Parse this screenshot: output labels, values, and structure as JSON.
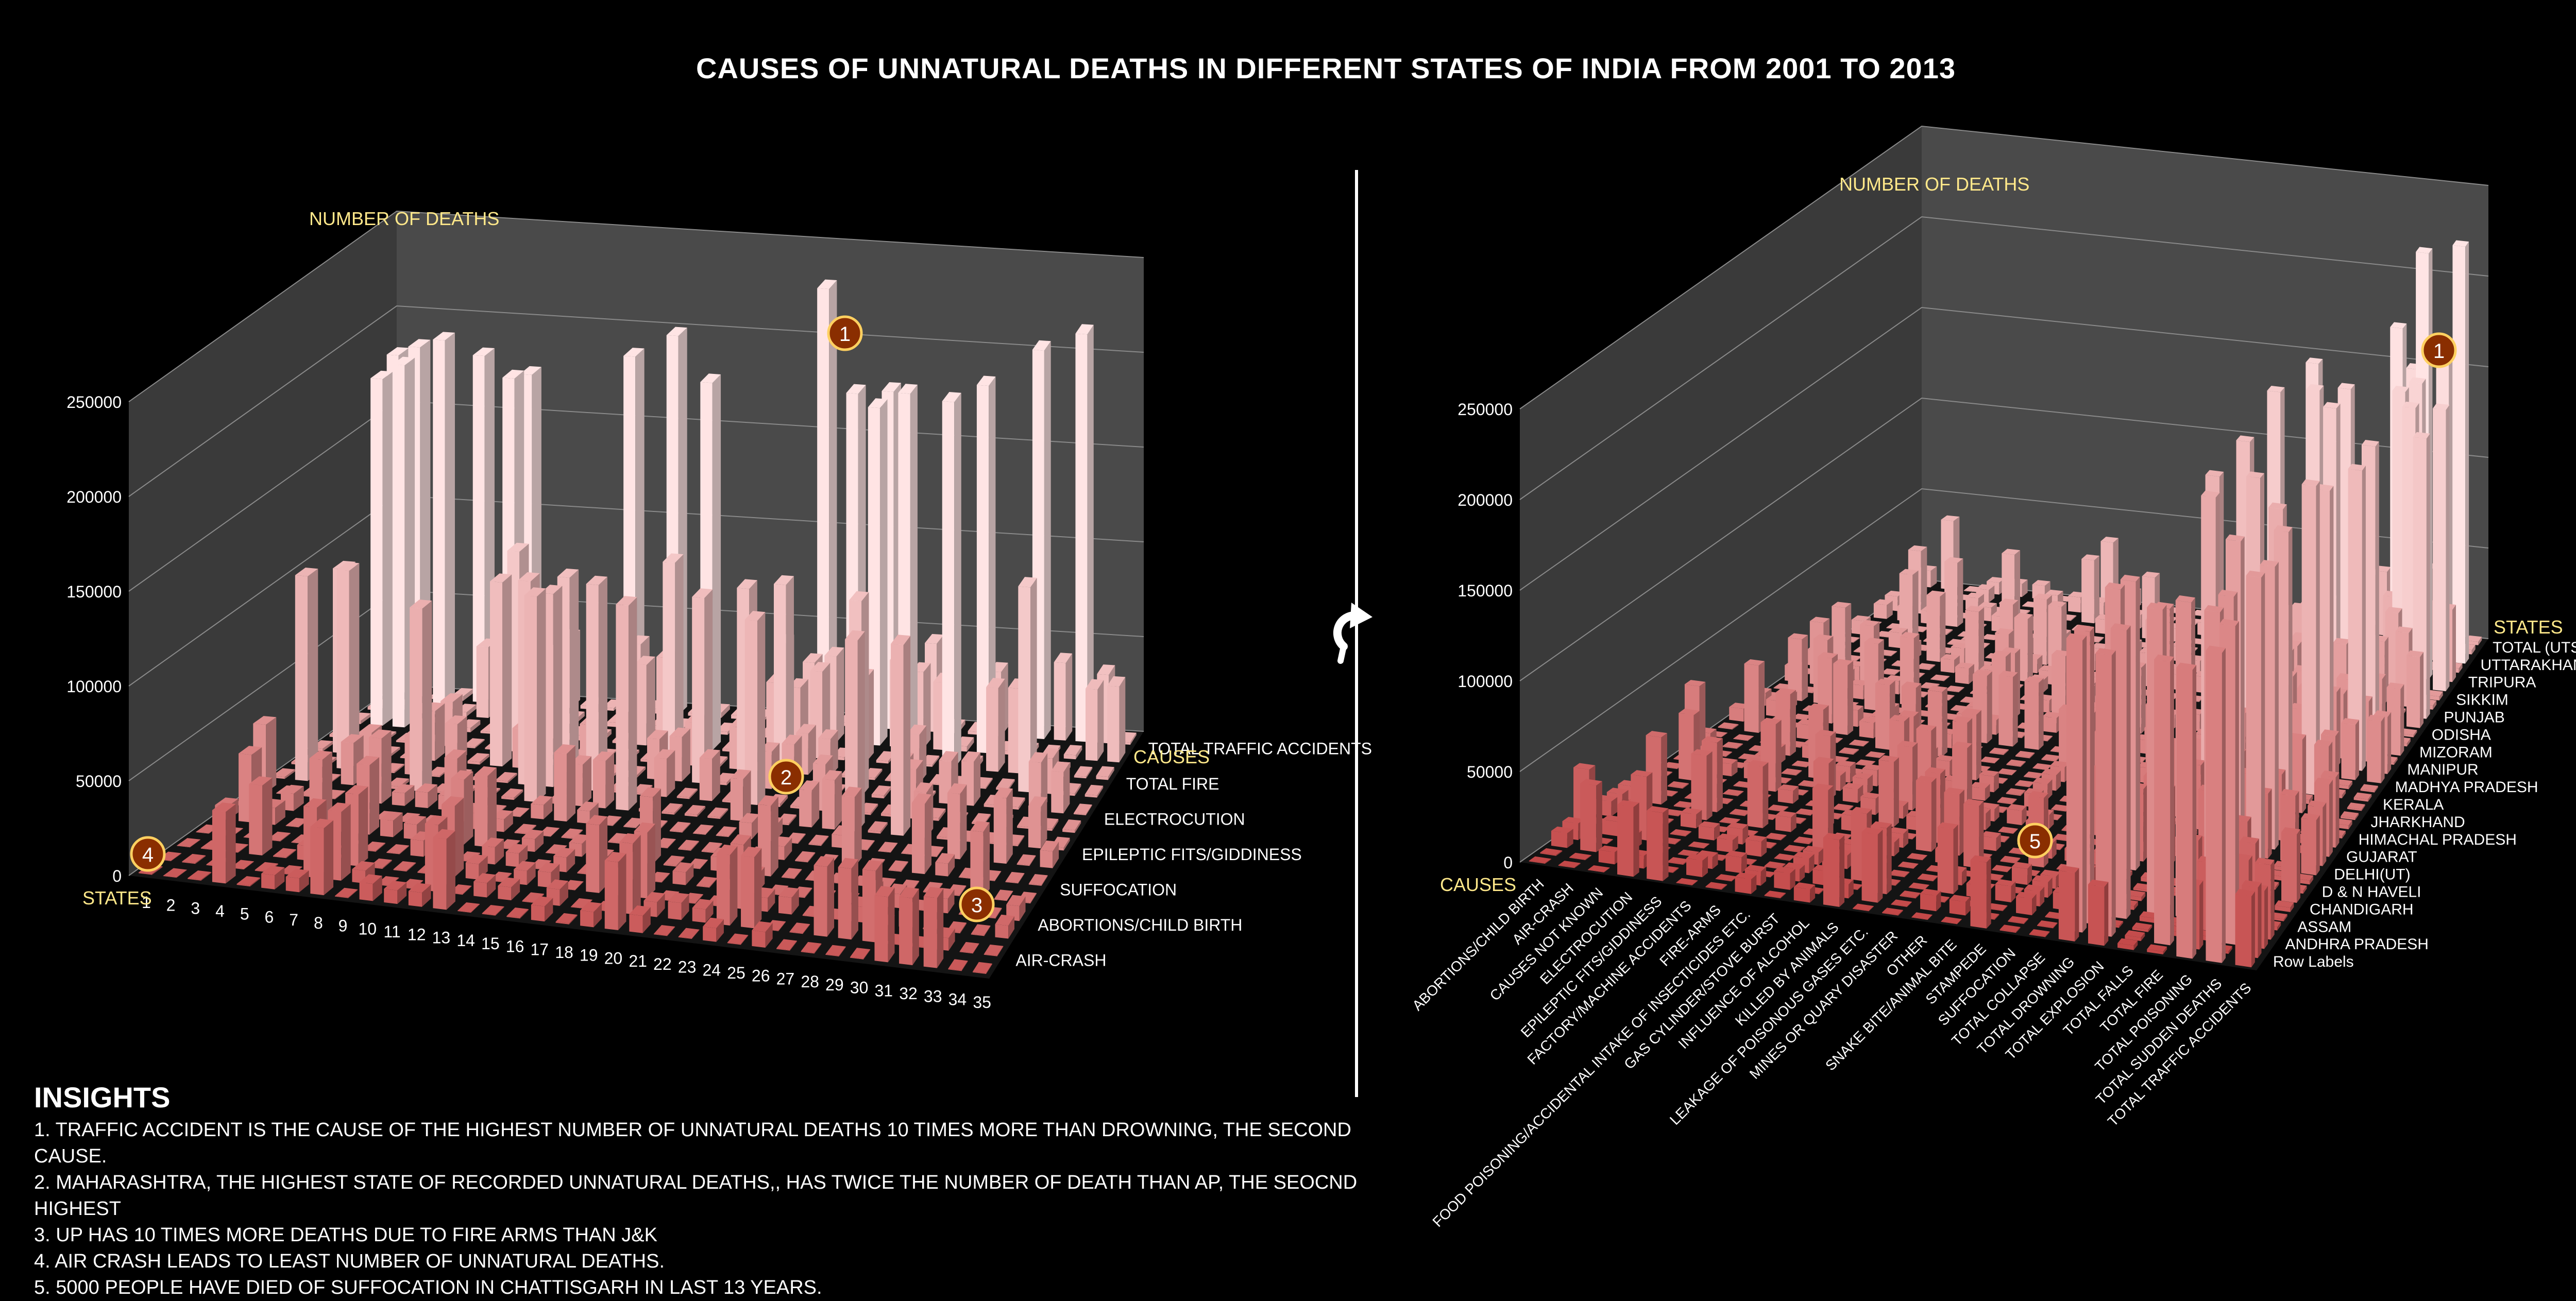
{
  "title": "CAUSES OF UNNATURAL DEATHS IN DIFFERENT STATES OF INDIA FROM 2001 TO 2013",
  "insights": {
    "heading": "INSIGHTS",
    "items": [
      "1. TRAFFIC ACCIDENT IS THE CAUSE OF THE HIGHEST NUMBER OF UNNATURAL DEATHS 10 TIMES MORE THAN DROWNING, THE SECOND CAUSE.",
      "2. MAHARASHTRA, THE HIGHEST STATE OF RECORDED UNNATURAL DEATHS,, HAS TWICE THE NUMBER OF DEATH THAN AP, THE SEOCND HIGHEST",
      "3. UP HAS 10 TIMES MORE DEATHS DUE TO FIRE ARMS THAN J&K",
      "4. AIR CRASH LEADS TO LEAST NUMBER OF UNNATURAL DEATHS.",
      "5. 5000 PEOPLE HAVE DIED OF SUFFOCATION IN CHATTISGARH IN LAST 13 YEARS."
    ]
  },
  "icons": {
    "rotate": "rotate-arrow-icon"
  },
  "colors": {
    "low": "#c04040",
    "high": "#ffe4e4",
    "marker_fill": "#8a2e00",
    "marker_ring": "#ffd060",
    "axis_label": "#ffe88a"
  },
  "chart_data": [
    {
      "type": "bar3d",
      "ylabel": "NUMBER OF DEATHS",
      "xlabel": "STATES",
      "zlabel": "CAUSES",
      "ylim": [
        0,
        250000
      ],
      "yticks": [
        "0",
        "50000",
        "100000",
        "150000",
        "200000",
        "250000"
      ],
      "x_categories": [
        "1",
        "2",
        "3",
        "4",
        "5",
        "6",
        "7",
        "8",
        "9",
        "10",
        "11",
        "12",
        "13",
        "14",
        "15",
        "16",
        "17",
        "18",
        "19",
        "20",
        "21",
        "22",
        "23",
        "24",
        "25",
        "26",
        "27",
        "28",
        "29",
        "30",
        "31",
        "32",
        "33",
        "34",
        "35"
      ],
      "z_categories_labeled": [
        "AIR-CRASH",
        "ABORTIONS/CHILD BIRTH",
        "SUFFOCATION",
        "EPILEPTIC FITS/GIDDINESS",
        "ELECTROCUTION",
        "TOTAL FIRE",
        "TOTAL TRAFFIC ACCIDENTS"
      ],
      "notable_values": [
        {
          "state": "21",
          "cause": "TOTAL TRAFFIC ACCIDENTS",
          "value": 230000
        },
        {
          "state": "14",
          "cause": "TOTAL TRAFFIC ACCIDENTS",
          "value": 200000
        },
        {
          "state": "31",
          "cause": "TOTAL TRAFFIC ACCIDENTS",
          "value": 205000
        },
        {
          "state": "33",
          "cause": "TOTAL TRAFFIC ACCIDENTS",
          "value": 215000
        }
      ],
      "markers": [
        {
          "label": "1",
          "note": "tallest bar"
        },
        {
          "label": "2",
          "note": "Maharashtra cluster"
        },
        {
          "label": "3",
          "note": "front right corner"
        },
        {
          "label": "4",
          "note": "origin"
        }
      ]
    },
    {
      "type": "bar3d",
      "ylabel": "NUMBER OF DEATHS",
      "xlabel": "CAUSES",
      "zlabel": "STATES",
      "ylim": [
        0,
        250000
      ],
      "yticks": [
        "0",
        "50000",
        "100000",
        "150000",
        "200000",
        "250000"
      ],
      "x_categories": [
        "ABORTIONS/CHILD BIRTH",
        "AIR-CRASH",
        "CAUSES NOT KNOWN",
        "ELECTROCUTION",
        "EPILEPTIC FITS/GIDDINESS",
        "FACTORY/MACHINE ACCIDENTS",
        "FIRE-ARMS",
        "FOOD POISONING/ACCIDENTAL INTAKE OF INSECTICIDES ETC.",
        "GAS CYLINDER/STOVE BURST",
        "INFLUENCE OF ALCOHOL",
        "KILLED BY ANIMALS",
        "LEAKAGE OF POISONOUS GASES ETC.",
        "MINES OR QUARY DISASTER",
        "OTHER",
        "SNAKE BITE/ANIMAL BITE",
        "STAMPEDE",
        "SUFFOCATION",
        "TOTAL COLLAPSE",
        "TOTAL DROWNING",
        "TOTAL EXPLOSION",
        "TOTAL FALLS",
        "TOTAL FIRE",
        "TOTAL POISONING",
        "TOTAL SUDDEN DEATHS",
        "TOTAL TRAFFIC ACCIDENTS"
      ],
      "z_categories_labeled": [
        "Row Labels",
        "ANDHRA PRADESH",
        "ASSAM",
        "CHANDIGARH",
        "D & N HAVELI",
        "DELHI(UT)",
        "GUJARAT",
        "HIMACHAL PRADESH",
        "JHARKHAND",
        "KERALA",
        "MADHYA PRADESH",
        "MANIPUR",
        "MIZORAM",
        "ODISHA",
        "PUNJAB",
        "SIKKIM",
        "TRIPURA",
        "UTTARAKHAND",
        "TOTAL (UTS)"
      ],
      "notable_values": [
        {
          "cause": "TOTAL TRAFFIC ACCIDENTS",
          "state": "UTTARAKHAND",
          "value": 230000
        },
        {
          "cause": "TOTAL SUDDEN DEATHS",
          "state": "TRIPURA",
          "value": 235000
        },
        {
          "cause": "TOTAL POISONING",
          "state": "DELHI(UT)",
          "value": 160000
        }
      ],
      "markers": [
        {
          "label": "1",
          "note": "tallest bar"
        },
        {
          "label": "5",
          "note": "suffocation in Chattisgarh"
        }
      ]
    }
  ]
}
